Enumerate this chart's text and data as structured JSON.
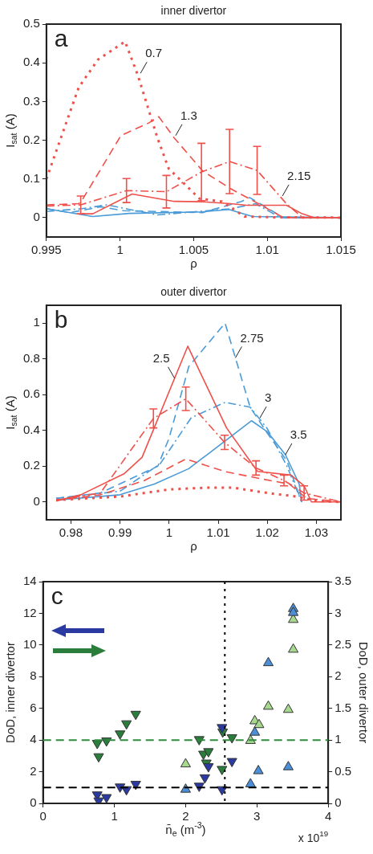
{
  "chart_data": [
    {
      "type": "line",
      "title": "inner divertor",
      "xlabel": "ρ",
      "ylabel": "I$_{sat}$ (A)",
      "xlim": [
        0.995,
        1.015
      ],
      "xticks": [
        0.995,
        1,
        1.005,
        1.01,
        1.015
      ],
      "ylim": [
        -0.05,
        0.5
      ],
      "yticks": [
        0,
        0.1,
        0.2,
        0.3,
        0.4,
        0.5
      ],
      "marker": "none",
      "annotations": [
        "a",
        {
          "text": "0.7",
          "x": 1.00139,
          "y": 0.373
        },
        {
          "text": "1.3",
          "x": 1.00378,
          "y": 0.212
        },
        {
          "text": "2.15",
          "x": 1.01103,
          "y": 0.056
        }
      ],
      "series": [
        {
          "color": "#f0504a",
          "line_style": "dotted",
          "x": [
            0.995,
            0.9972,
            0.9985,
            1.00034,
            1.0012,
            1.00254,
            1.0033,
            1.0054,
            1.0069,
            1.00845,
            1.0102,
            1.015
          ],
          "values": [
            0.1,
            0.337,
            0.408,
            0.455,
            0.369,
            0.206,
            0.127,
            0.049,
            0.042,
            0.003,
            0.001,
            0
          ]
        },
        {
          "color": "#f0504a",
          "line_style": "dashed",
          "x": [
            0.995,
            0.9972,
            0.9975,
            1.00006,
            1.00197,
            1.00263,
            1.00368,
            1.0056,
            1.0075,
            1.0094,
            1.0111,
            1.015
          ],
          "values": [
            0.033,
            0.036,
            0.05,
            0.212,
            0.245,
            0.261,
            0.206,
            0.121,
            0.075,
            0.036,
            0,
            0
          ]
        },
        {
          "color": "#f0504a",
          "line_style": "dashdot",
          "x": [
            0.995,
            0.99733,
            1.00044,
            1.00315,
            1.00553,
            1.00744,
            1.00931,
            1.0113,
            1.0124,
            1.015
          ],
          "values": [
            0.03,
            0.033,
            0.07,
            0.067,
            0.118,
            0.145,
            0.122,
            0.036,
            0,
            0
          ],
          "errors": [
            null,
            0.023,
            0.031,
            0.042,
            0.074,
            0.083,
            0.062,
            null,
            null,
            null
          ]
        },
        {
          "color": "#f0504a",
          "line_style": "solid",
          "x": [
            0.99739,
            0.99815,
            1.00082,
            1.00368,
            1.0056,
            1.0075,
            1.0086,
            1.0113,
            1.01237,
            1.0132,
            1.015
          ],
          "values": [
            0.01,
            0.01,
            0.061,
            0.042,
            0.041,
            0.036,
            0.032,
            0.032,
            0.01,
            0,
            0
          ]
        },
        {
          "color": "#4a9bd8",
          "line_style": "solid",
          "x": [
            0.995,
            0.99815,
            1.00063,
            1.0056,
            1.0074,
            1.009,
            1.015
          ],
          "values": [
            0.023,
            0.003,
            0.011,
            0.015,
            0.021,
            0.003,
            0
          ]
        },
        {
          "color": "#4a9bd8",
          "line_style": "dashed",
          "x": [
            0.995,
            0.9966,
            0.9987,
            1.00025,
            1.0056,
            1.00826,
            1.0088,
            1.0111,
            1.015
          ],
          "values": [
            0.023,
            0.013,
            0.028,
            0.018,
            0.013,
            0.042,
            0.052,
            0,
            0
          ]
        },
        {
          "color": "#4a9bd8",
          "line_style": "dashdot",
          "x": [
            0.995,
            0.99739,
            0.9991,
            1.00254,
            1.0075,
            1.0092,
            1.0109,
            1.015
          ],
          "values": [
            0.016,
            0.023,
            0.033,
            0.007,
            0.023,
            0.036,
            0,
            0
          ]
        }
      ]
    },
    {
      "type": "line",
      "title": "outer divertor",
      "xlabel": "ρ",
      "ylabel": "I$_{sat}$ (A)",
      "xlim": [
        0.975,
        1.035
      ],
      "xticks": [
        0.98,
        0.99,
        1,
        1.01,
        1.02,
        1.03
      ],
      "ylim": [
        -0.1,
        1.1
      ],
      "yticks": [
        0,
        0.2,
        0.4,
        0.6,
        0.8,
        1
      ],
      "marker": "none",
      "annotations": [
        "b",
        {
          "text": "2.5",
          "x": 1.0011,
          "y": 0.692
        },
        {
          "text": "2.75",
          "x": 1.0135,
          "y": 0.806
        },
        {
          "text": "3",
          "x": 1.0185,
          "y": 0.47
        },
        {
          "text": "3.5",
          "x": 1.0237,
          "y": 0.264
        }
      ],
      "series": [
        {
          "color": "#f0504a",
          "line_style": "solid",
          "x": [
            0.977,
            0.982,
            0.9908,
            0.9945,
            1.0038,
            1.0117,
            1.018,
            1.0248,
            1.0275,
            1.029,
            1.035
          ],
          "values": [
            0.005,
            0.04,
            0.157,
            0.25,
            0.871,
            0.414,
            0.171,
            0.15,
            0.09,
            0,
            0
          ]
        },
        {
          "color": "#f0504a",
          "line_style": "dashdot",
          "x": [
            0.977,
            0.986,
            0.9968,
            1.0034,
            1.0113,
            1.0177,
            1.0234,
            1.0275,
            1.035
          ],
          "values": [
            0.01,
            0.05,
            0.467,
            0.577,
            0.333,
            0.19,
            0.12,
            0.05,
            0
          ],
          "errors": [
            null,
            null,
            0.053,
            0.066,
            0.04,
            0.04,
            0.03,
            0.04,
            null
          ]
        },
        {
          "color": "#f0504a",
          "line_style": "dashed",
          "x": [
            0.977,
            0.986,
            0.995,
            1.0034,
            1.0114,
            1.0186,
            1.0245,
            1.028,
            1.035
          ],
          "values": [
            0.01,
            0.04,
            0.12,
            0.24,
            0.17,
            0.13,
            0.1,
            0.02,
            0
          ]
        },
        {
          "color": "#f0504a",
          "line_style": "dotted",
          "x": [
            0.977,
            0.99,
            1.0,
            1.008,
            1.013,
            1.02,
            1.026,
            1.03,
            1.035
          ],
          "values": [
            0.01,
            0.03,
            0.07,
            0.08,
            0.08,
            0.05,
            0.03,
            0.005,
            0
          ]
        },
        {
          "color": "#4a9bd8",
          "line_style": "dashed",
          "x": [
            0.977,
            0.986,
            0.9977,
            1.0,
            1.004,
            1.0114,
            1.0165,
            1.02,
            1.024,
            1.027
          ],
          "values": [
            0.02,
            0.05,
            0.2,
            0.357,
            0.757,
            1.0,
            0.53,
            0.385,
            0.229,
            0
          ]
        },
        {
          "color": "#4a9bd8",
          "line_style": "dashdot",
          "x": [
            0.977,
            0.99,
            0.9982,
            1.0045,
            1.0114,
            1.0165,
            1.02,
            1.024,
            1.027
          ],
          "values": [
            0.02,
            0.06,
            0.214,
            0.471,
            0.557,
            0.53,
            0.41,
            0.2,
            0
          ]
        },
        {
          "color": "#4a9bd8",
          "line_style": "solid",
          "x": [
            0.977,
            0.99,
            0.997,
            1.004,
            1.0168,
            1.02,
            1.0237,
            1.0265,
            1.027
          ],
          "values": [
            0.01,
            0.04,
            0.1,
            0.186,
            0.454,
            0.393,
            0.264,
            0.1,
            0
          ]
        }
      ]
    },
    {
      "type": "scatter",
      "xlabel": "n̄$_{e}$ (m$^{-3}$)",
      "ylabel": "DoD, inner divertor",
      "y2label": "DoD, outer divertor",
      "xlim": [
        0,
        4
      ],
      "xticks": [
        0,
        1,
        2,
        3,
        4
      ],
      "ylim": [
        0,
        14
      ],
      "yticks": [
        0,
        2,
        4,
        6,
        8,
        10,
        12,
        14
      ],
      "y2lim": [
        0,
        3.5
      ],
      "y2ticks": [
        0,
        0.5,
        1,
        1.5,
        2,
        2.5,
        3,
        3.5
      ],
      "annotations": [
        "c",
        "x 10$^{19}$"
      ],
      "ref_lines": [
        {
          "axis": "y",
          "value": 1,
          "color": "#000000",
          "line_style": "dashed"
        },
        {
          "axis": "y2",
          "value": 1,
          "color": "#2e8b3e",
          "line_style": "dashed"
        },
        {
          "axis": "x",
          "value": 2.55,
          "color": "#000000",
          "line_style": "dotted"
        }
      ],
      "series": [
        {
          "color": "#2b3aa0",
          "marker": "triangle_down",
          "x": [
            0.76,
            0.78,
            0.89,
            1.08,
            1.17,
            1.3,
            2.19,
            2.27,
            2.32,
            2.51,
            2.51,
            2.65
          ],
          "values": [
            0.55,
            0.17,
            0.38,
            1.05,
            0.88,
            1.22,
            1.1,
            1.63,
            2.33,
            0.88,
            4.8,
            2.66
          ]
        },
        {
          "color": "#2a7d3b",
          "marker": "triangle_down",
          "axis": "y2",
          "x": [
            0.76,
            0.78,
            0.89,
            1.08,
            1.17,
            1.3,
            2.19,
            2.25,
            2.32,
            2.29,
            2.51,
            2.52,
            2.65
          ],
          "values": [
            0.95,
            0.74,
            0.99,
            1.1,
            1.26,
            1.41,
            1.01,
            0.78,
            0.82,
            0.64,
            0.54,
            1.13,
            1.04
          ]
        },
        {
          "color": "#4a8fd8",
          "marker": "triangle",
          "x": [
            2.0,
            2.91,
            3.02,
            2.97,
            3.16,
            3.44,
            3.51,
            3.51
          ],
          "values": [
            0.88,
            1.22,
            2.05,
            4.48,
            8.87,
            2.3,
            12.29,
            12.04
          ]
        },
        {
          "color": "#a6d98e",
          "marker": "triangle",
          "axis": "y2",
          "x": [
            2.0,
            2.91,
            2.97,
            3.03,
            3.16,
            3.44,
            3.51,
            3.51
          ],
          "values": [
            0.62,
            0.99,
            1.3,
            1.24,
            1.53,
            1.48,
            2.43,
            2.9
          ]
        }
      ]
    }
  ]
}
